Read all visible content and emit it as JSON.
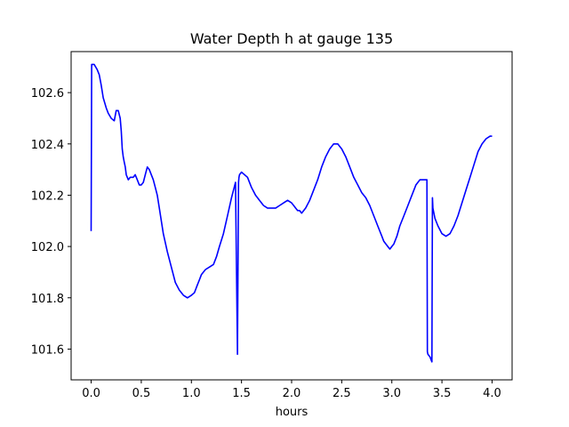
{
  "chart_data": {
    "type": "line",
    "title": "Water Depth h at gauge 135",
    "xlabel": "hours",
    "ylabel": "",
    "xlim": [
      -0.2,
      4.2
    ],
    "ylim": [
      101.48,
      102.76
    ],
    "xticks": [
      0.0,
      0.5,
      1.0,
      1.5,
      2.0,
      2.5,
      3.0,
      3.5,
      4.0
    ],
    "xtick_labels": [
      "0.0",
      "0.5",
      "1.0",
      "1.5",
      "2.0",
      "2.5",
      "3.0",
      "3.5",
      "4.0"
    ],
    "yticks": [
      101.6,
      101.8,
      102.0,
      102.2,
      102.4,
      102.6
    ],
    "ytick_labels": [
      "101.6",
      "101.8",
      "102.0",
      "102.2",
      "102.4",
      "102.6"
    ],
    "grid": false,
    "series": [
      {
        "color": "#0000ff",
        "x": [
          0.0,
          0.005,
          0.01,
          0.03,
          0.06,
          0.08,
          0.1,
          0.12,
          0.15,
          0.17,
          0.2,
          0.23,
          0.25,
          0.27,
          0.29,
          0.3,
          0.31,
          0.32,
          0.33,
          0.34,
          0.35,
          0.37,
          0.39,
          0.4,
          0.42,
          0.44,
          0.46,
          0.48,
          0.5,
          0.52,
          0.54,
          0.56,
          0.58,
          0.6,
          0.62,
          0.64,
          0.66,
          0.68,
          0.72,
          0.76,
          0.8,
          0.84,
          0.88,
          0.92,
          0.96,
          1.0,
          1.03,
          1.06,
          1.08,
          1.1,
          1.14,
          1.18,
          1.22,
          1.25,
          1.28,
          1.32,
          1.36,
          1.4,
          1.44,
          1.46,
          1.47,
          1.475,
          1.48,
          1.5,
          1.53,
          1.56,
          1.6,
          1.64,
          1.68,
          1.72,
          1.76,
          1.8,
          1.84,
          1.88,
          1.92,
          1.96,
          2.0,
          2.02,
          2.04,
          2.06,
          2.08,
          2.1,
          2.14,
          2.18,
          2.22,
          2.26,
          2.3,
          2.34,
          2.38,
          2.42,
          2.46,
          2.5,
          2.54,
          2.58,
          2.62,
          2.66,
          2.7,
          2.74,
          2.78,
          2.82,
          2.86,
          2.9,
          2.92,
          2.94,
          2.96,
          2.98,
          3.0,
          3.02,
          3.05,
          3.08,
          3.12,
          3.16,
          3.2,
          3.24,
          3.28,
          3.31,
          3.34,
          3.35,
          3.355,
          3.36,
          3.38,
          3.4,
          3.405,
          3.41,
          3.43,
          3.46,
          3.5,
          3.54,
          3.58,
          3.62,
          3.66,
          3.7,
          3.74,
          3.78,
          3.82,
          3.86,
          3.9,
          3.94,
          3.98,
          4.0
        ],
        "y": [
          102.06,
          102.71,
          102.71,
          102.71,
          102.69,
          102.67,
          102.63,
          102.58,
          102.54,
          102.52,
          102.5,
          102.49,
          102.53,
          102.53,
          102.5,
          102.45,
          102.38,
          102.35,
          102.33,
          102.31,
          102.28,
          102.26,
          102.27,
          102.27,
          102.27,
          102.28,
          102.26,
          102.24,
          102.24,
          102.25,
          102.28,
          102.31,
          102.3,
          102.28,
          102.26,
          102.23,
          102.2,
          102.15,
          102.05,
          101.98,
          101.92,
          101.86,
          101.83,
          101.81,
          101.8,
          101.81,
          101.82,
          101.85,
          101.87,
          101.89,
          101.91,
          101.92,
          101.93,
          101.96,
          102.0,
          102.05,
          102.12,
          102.19,
          102.25,
          101.58,
          102.25,
          102.27,
          102.28,
          102.29,
          102.28,
          102.27,
          102.23,
          102.2,
          102.18,
          102.16,
          102.15,
          102.15,
          102.15,
          102.16,
          102.17,
          102.18,
          102.17,
          102.16,
          102.15,
          102.14,
          102.14,
          102.13,
          102.15,
          102.18,
          102.22,
          102.26,
          102.31,
          102.35,
          102.38,
          102.4,
          102.4,
          102.38,
          102.35,
          102.31,
          102.27,
          102.24,
          102.21,
          102.19,
          102.16,
          102.12,
          102.08,
          102.04,
          102.02,
          102.01,
          102.0,
          101.99,
          102.0,
          102.01,
          102.04,
          102.08,
          102.12,
          102.16,
          102.2,
          102.24,
          102.26,
          102.26,
          102.26,
          102.26,
          101.59,
          101.58,
          101.57,
          101.55,
          102.19,
          102.15,
          102.11,
          102.08,
          102.05,
          102.04,
          102.05,
          102.08,
          102.12,
          102.17,
          102.22,
          102.27,
          102.32,
          102.37,
          102.4,
          102.42,
          102.43,
          102.43
        ]
      }
    ]
  }
}
